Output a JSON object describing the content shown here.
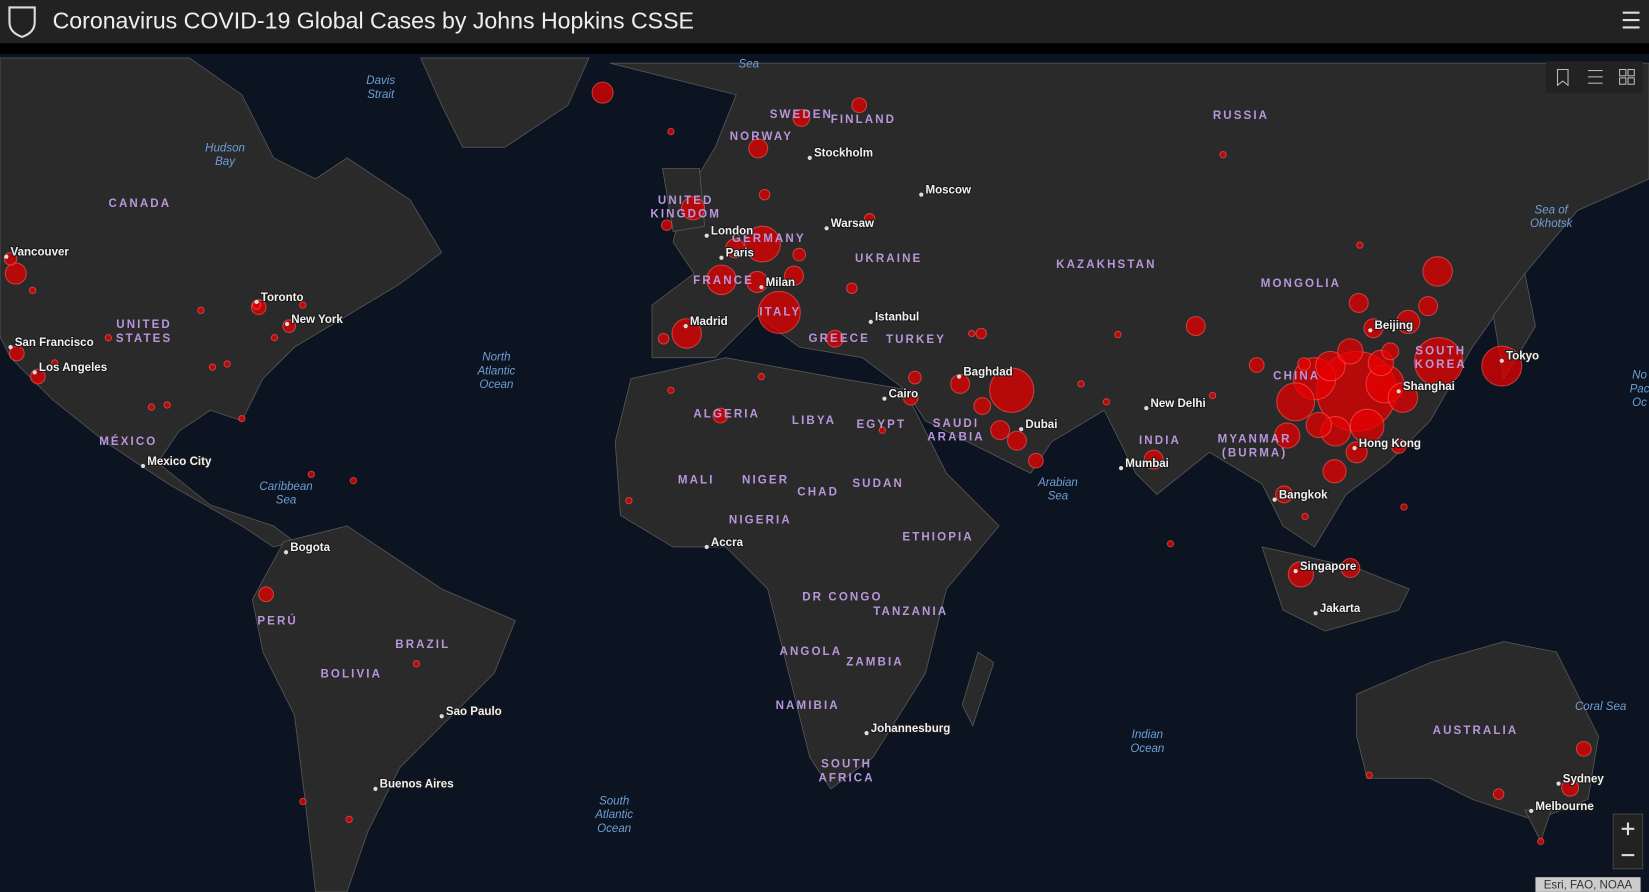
{
  "header": {
    "title": "Coronavirus COVID-19 Global Cases by Johns Hopkins CSSE"
  },
  "map": {
    "countries": [
      [
        "CANADA"
      ],
      [
        "UNITED",
        "STATES"
      ],
      [
        "MÉXICO"
      ],
      [
        "PERÚ"
      ],
      [
        "BRAZIL"
      ],
      [
        "BOLIVIA"
      ],
      [
        "SWEDEN"
      ],
      [
        "FINLAND"
      ],
      [
        "NORWAY"
      ],
      [
        "UNITED",
        "KINGDOM"
      ],
      [
        "GERMANY"
      ],
      [
        "FRANCE"
      ],
      [
        "ITALY"
      ],
      [
        "GREECE"
      ],
      [
        "UKRAINE"
      ],
      [
        "TURKEY"
      ],
      [
        "RUSSIA"
      ],
      [
        "KAZAKHSTAN"
      ],
      [
        "MONGOLIA"
      ],
      [
        "CHINA"
      ],
      [
        "SOUTH",
        "KOREA"
      ],
      [
        "INDIA"
      ],
      [
        "MYANMAR",
        "(BURMA)"
      ],
      [
        "ALGERIA"
      ],
      [
        "LIBYA"
      ],
      [
        "EGYPT"
      ],
      [
        "SAUDI",
        "ARABIA"
      ],
      [
        "MALI"
      ],
      [
        "NIGER"
      ],
      [
        "CHAD"
      ],
      [
        "SUDAN"
      ],
      [
        "NIGERIA"
      ],
      [
        "ETHIOPIA"
      ],
      [
        "DR CONGO"
      ],
      [
        "TANZANIA"
      ],
      [
        "ANGOLA"
      ],
      [
        "ZAMBIA"
      ],
      [
        "NAMIBIA"
      ],
      [
        "SOUTH",
        "AFRICA"
      ],
      [
        "AUSTRALIA"
      ]
    ],
    "cities": [
      "Vancouver",
      "San Francisco",
      "Los Angeles",
      "Toronto",
      "New York",
      "Mexico City",
      "Bogota",
      "Sao Paulo",
      "Buenos Aires",
      "London",
      "Paris",
      "Milan",
      "Madrid",
      "Stockholm",
      "Warsaw",
      "Moscow",
      "Istanbul",
      "Cairo",
      "Baghdad",
      "Dubai",
      "New Delhi",
      "Mumbai",
      "Beijing",
      "Shanghai",
      "Tokyo",
      "Hong Kong",
      "Bangkok",
      "Singapore",
      "Jakarta",
      "Accra",
      "Johannesburg",
      "Sydney",
      "Melbourne"
    ],
    "water": [
      [
        "Sea"
      ],
      [
        "Davis",
        "Strait"
      ],
      [
        "Hudson",
        "Bay"
      ],
      [
        "North",
        "Atlantic",
        "Ocean"
      ],
      [
        "Caribbean",
        "Sea"
      ],
      [
        "South",
        "Atlantic",
        "Ocean"
      ],
      [
        "Arabian",
        "Sea"
      ],
      [
        "Indian",
        "Ocean"
      ],
      [
        "Sea of",
        "Okhotsk"
      ],
      [
        "Coral Sea"
      ],
      [
        "No",
        "Pac",
        "Oc"
      ]
    ]
  },
  "attribution": "Esri, FAO, NOAA"
}
